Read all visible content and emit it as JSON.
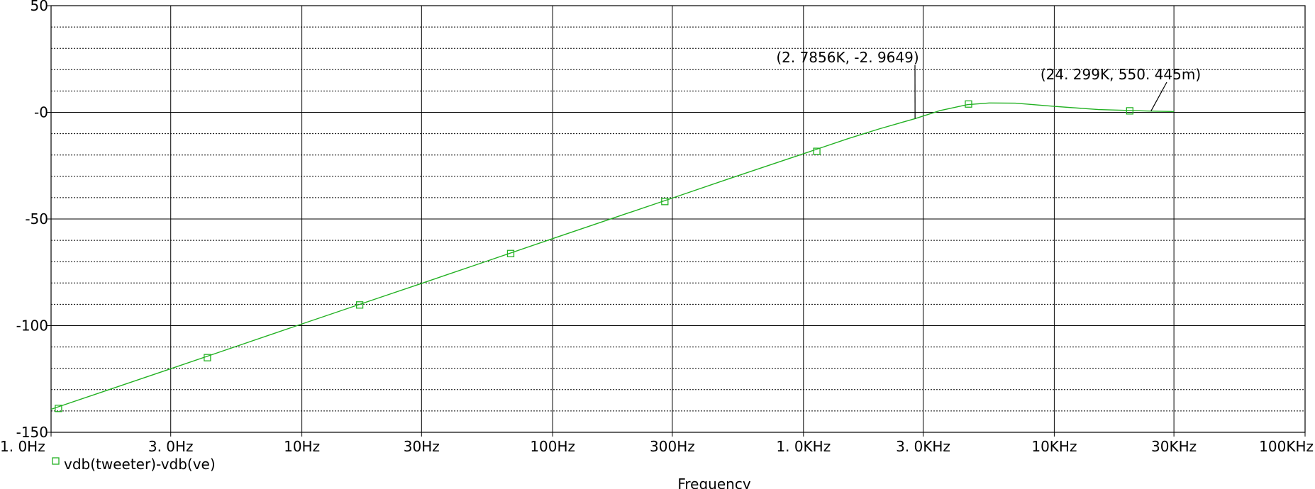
{
  "chart_data": {
    "type": "line",
    "xscale": "log",
    "xlim": [
      1,
      100000
    ],
    "ylim": [
      -150,
      50
    ],
    "x_ticks": [
      {
        "value": 1,
        "label": "1. 0Hz"
      },
      {
        "value": 3,
        "label": "3. 0Hz"
      },
      {
        "value": 10,
        "label": "10Hz"
      },
      {
        "value": 30,
        "label": "30Hz"
      },
      {
        "value": 100,
        "label": "100Hz"
      },
      {
        "value": 300,
        "label": "300Hz"
      },
      {
        "value": 1000,
        "label": "1. 0KHz"
      },
      {
        "value": 3000,
        "label": "3. 0KHz"
      },
      {
        "value": 10000,
        "label": "10KHz"
      },
      {
        "value": 30000,
        "label": "30KHz"
      },
      {
        "value": 100000,
        "label": "100KHz"
      }
    ],
    "y_ticks": [
      {
        "value": 50,
        "label": "50"
      },
      {
        "value": 0,
        "label": "-0"
      },
      {
        "value": -50,
        "label": "-50"
      },
      {
        "value": -100,
        "label": "-100"
      },
      {
        "value": -150,
        "label": "-150"
      }
    ],
    "y_minor_grid": [
      40,
      30,
      20,
      10,
      -10,
      -20,
      -30,
      -40,
      -60,
      -70,
      -80,
      -90,
      -110,
      -120,
      -130,
      -140
    ],
    "xlabel": "Frequency",
    "series": [
      {
        "name": "vdb(tweeter)-vdb(ve)",
        "color": "#22b122",
        "x": [
          1,
          2,
          3,
          5,
          10,
          20,
          30,
          50,
          100,
          200,
          300,
          500,
          700,
          1000,
          1500,
          2000,
          2785.6,
          3500,
          4500,
          5500,
          7000,
          10000,
          15000,
          24299,
          30000
        ],
        "y": [
          -139.2,
          -127.2,
          -120.2,
          -111.3,
          -99.2,
          -87.2,
          -80.2,
          -71.3,
          -59.2,
          -47.2,
          -40.2,
          -31.3,
          -25.5,
          -19.4,
          -12.4,
          -7.8,
          -2.96,
          0.8,
          3.6,
          4.4,
          4.3,
          2.8,
          1.3,
          0.55,
          0.35
        ],
        "markers_x": [
          1.07,
          4.2,
          17,
          68,
          280,
          1130,
          4550,
          20000
        ],
        "markers_y": [
          -138.8,
          -115.0,
          -90.3,
          -66.2,
          -41.8,
          -18.3,
          3.9,
          0.7
        ]
      }
    ],
    "annotations": [
      {
        "text": "(2. 7856K, -2. 9649)",
        "x": 2785.6,
        "y": -2.9649
      },
      {
        "text": "(24. 299K, 550. 445m)",
        "x": 24299,
        "y": 0.550445
      }
    ]
  }
}
